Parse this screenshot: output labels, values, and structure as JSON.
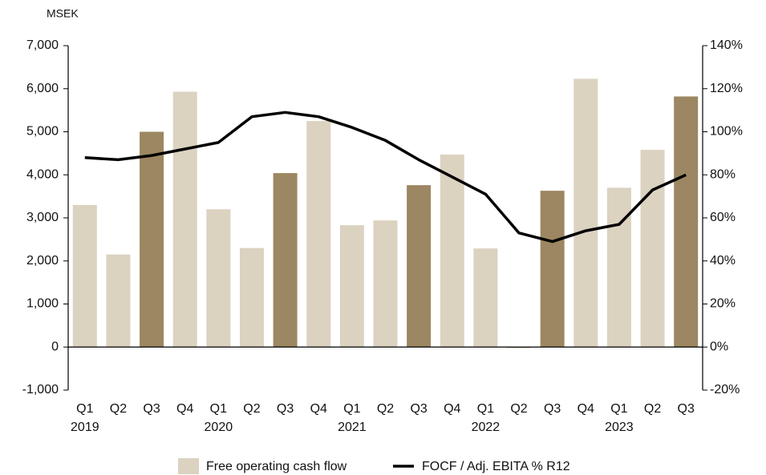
{
  "chart_data": {
    "type": "bar_line",
    "y_unit": "MSEK",
    "categories": [
      "Q1",
      "Q2",
      "Q3",
      "Q4",
      "Q1",
      "Q2",
      "Q3",
      "Q4",
      "Q1",
      "Q2",
      "Q3",
      "Q4",
      "Q1",
      "Q2",
      "Q3",
      "Q4",
      "Q1",
      "Q2",
      "Q3"
    ],
    "years": [
      "2019",
      "2020",
      "2021",
      "2022",
      "2023"
    ],
    "series": [
      {
        "name": "Free operating cash flow",
        "kind": "bar",
        "color": "#dbd2c0",
        "bar_colors": [
          "#dbd2c0",
          "#dbd2c0",
          "#9c8762",
          "#dbd2c0",
          "#dbd2c0",
          "#dbd2c0",
          "#9c8762",
          "#dbd2c0",
          "#dbd2c0",
          "#dbd2c0",
          "#9c8762",
          "#dbd2c0",
          "#dbd2c0",
          "#dbd2c0",
          "#9c8762",
          "#dbd2c0",
          "#dbd2c0",
          "#dbd2c0",
          "#9c8762"
        ],
        "values": [
          3300,
          2150,
          5000,
          5930,
          3200,
          2300,
          4040,
          5250,
          2830,
          2940,
          3760,
          4470,
          2290,
          -30,
          3630,
          6230,
          3700,
          4580,
          5820
        ]
      },
      {
        "name": "FOCF / Adj. EBITA % R12",
        "kind": "line",
        "color": "#000000",
        "axis": "y2",
        "values": [
          88,
          87,
          89,
          92,
          95,
          107,
          109,
          107,
          102,
          96,
          87,
          79,
          71,
          53,
          49,
          54,
          57,
          73,
          80
        ]
      }
    ],
    "ylim": [
      -1000,
      7000
    ],
    "yticks": [
      {
        "value": -1000,
        "label": "-1,000"
      },
      0,
      {
        "value": 1000,
        "label": "1,000"
      },
      {
        "value": 2000,
        "label": "2,000"
      },
      {
        "value": 3000,
        "label": "3,000"
      },
      {
        "value": 4000,
        "label": "4,000"
      },
      {
        "value": 5000,
        "label": "5,000"
      },
      {
        "value": 6000,
        "label": "6,000"
      },
      {
        "value": 7000,
        "label": "7,000"
      }
    ],
    "y2lim": [
      -20,
      140
    ],
    "y2ticks": [
      {
        "value": -20,
        "label": "-20%"
      },
      {
        "value": 0,
        "label": "0%"
      },
      {
        "value": 20,
        "label": "20%"
      },
      {
        "value": 40,
        "label": "40%"
      },
      {
        "value": 60,
        "label": "60%"
      },
      {
        "value": 80,
        "label": "80%"
      },
      {
        "value": 100,
        "label": "100%"
      },
      {
        "value": 120,
        "label": "120%"
      },
      {
        "value": 140,
        "label": "140%"
      }
    ],
    "legend": "bottom"
  }
}
